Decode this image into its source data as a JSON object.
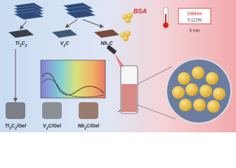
{
  "materials": [
    {
      "label": [
        "Ti",
        "3",
        "C",
        "2"
      ]
    },
    {
      "label": [
        "V",
        "2",
        "C"
      ]
    },
    {
      "label": [
        "Nb",
        "2",
        "C"
      ]
    }
  ],
  "gels": [
    {
      "label": [
        "Ti",
        "3",
        "C",
        "2",
        "/Gel"
      ]
    },
    {
      "label": [
        "V",
        "2",
        "C/Gel"
      ]
    },
    {
      "label": [
        "Nb",
        "2",
        "C/Gel"
      ]
    }
  ],
  "protein": "BSA",
  "laser": {
    "wavelength": "1064nm",
    "power": "0.112W",
    "time": "5 min"
  }
}
